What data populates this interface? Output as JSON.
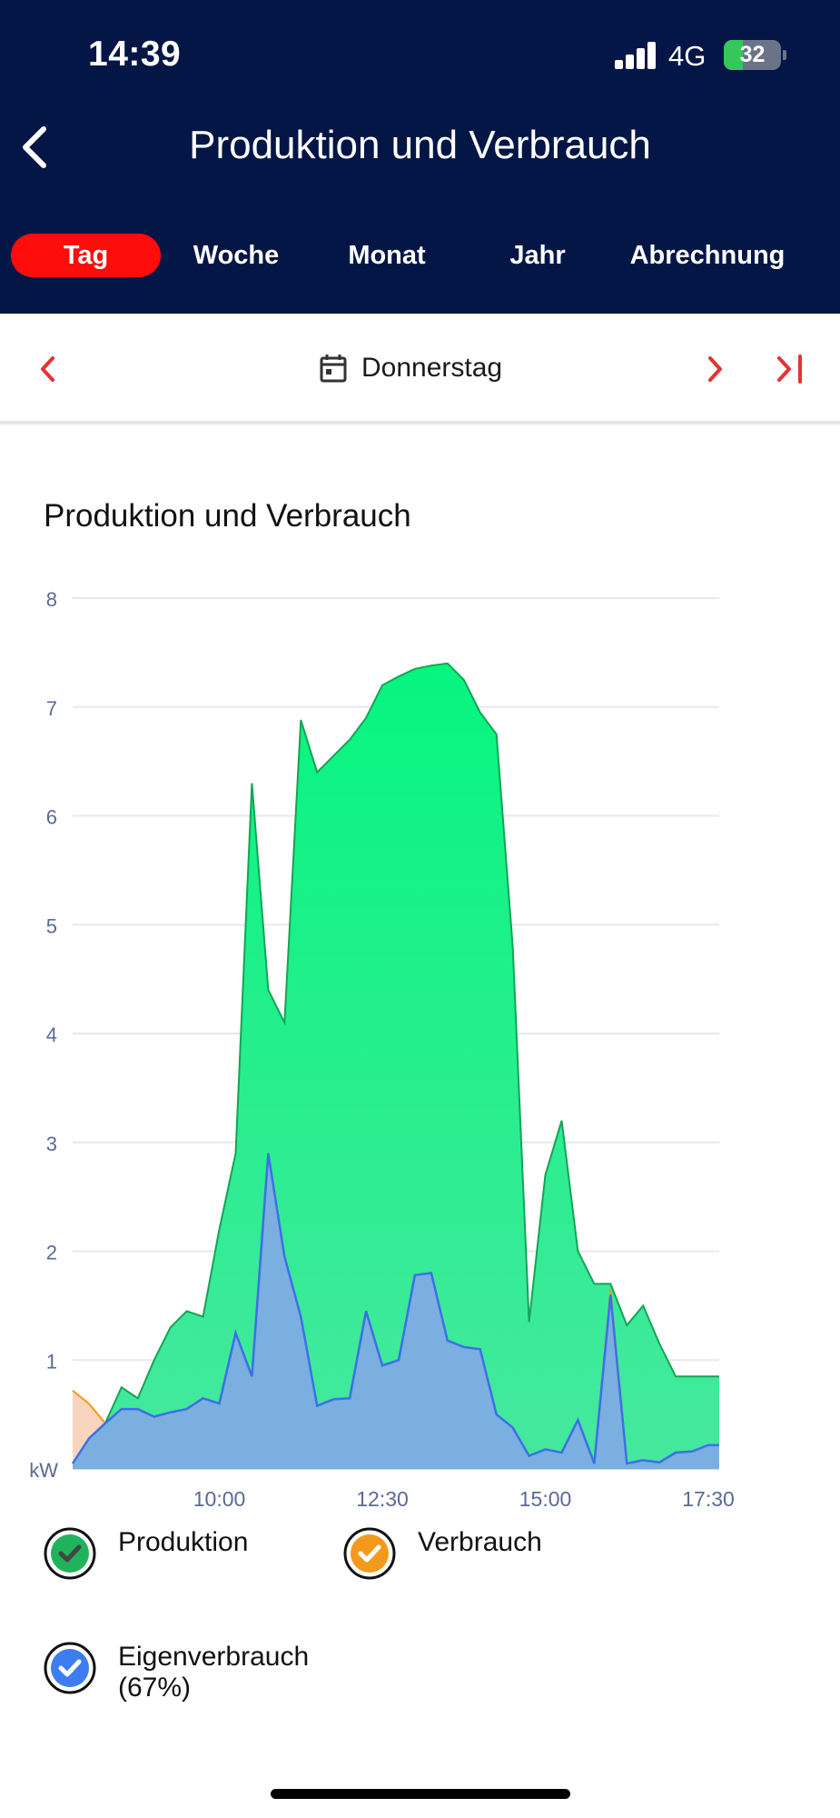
{
  "status": {
    "time": "14:39",
    "network": "4G",
    "battery": "32"
  },
  "header": {
    "title": "Produktion und Verbrauch"
  },
  "tabs": [
    {
      "label": "Tag",
      "active": true
    },
    {
      "label": "Woche",
      "active": false
    },
    {
      "label": "Monat",
      "active": false
    },
    {
      "label": "Jahr",
      "active": false
    },
    {
      "label": "Abrechnung",
      "active": false
    }
  ],
  "datebar": {
    "date": "Donnerstag"
  },
  "card": {
    "title": "Produktion und Verbrauch"
  },
  "colors": {
    "header_bg": "#031646",
    "accent_red": "#ff0c0c",
    "produktion": "#1fe67f",
    "verbrauch": "#f39a1c",
    "eigenverbrauch": "#3d7df0"
  },
  "chart_data": {
    "type": "area",
    "title": "Produktion und Verbrauch",
    "ylabel": "kW",
    "xlabel": "",
    "ylim": [
      0,
      8
    ],
    "yticks": [
      "8",
      "7",
      "6",
      "5",
      "4",
      "3",
      "2",
      "1",
      "kW"
    ],
    "xticks": [
      "10:00",
      "12:30",
      "15:00",
      "17:30"
    ],
    "x_range": [
      "07:45",
      "17:40"
    ],
    "grid": true,
    "legend_position": "bottom",
    "x": [
      "07:45",
      "08:00",
      "08:15",
      "08:30",
      "08:45",
      "09:00",
      "09:15",
      "09:30",
      "09:45",
      "10:00",
      "10:15",
      "10:30",
      "10:45",
      "11:00",
      "11:15",
      "11:30",
      "11:45",
      "12:00",
      "12:15",
      "12:30",
      "12:45",
      "13:00",
      "13:15",
      "13:30",
      "13:45",
      "14:00",
      "14:15",
      "14:30",
      "14:45",
      "15:00",
      "15:15",
      "15:30",
      "15:45",
      "16:00",
      "16:15",
      "16:30",
      "16:45",
      "17:00",
      "17:15",
      "17:30",
      "17:40"
    ],
    "series": [
      {
        "name": "Produktion",
        "values": [
          0.05,
          0.28,
          0.42,
          0.75,
          0.65,
          1.0,
          1.3,
          1.45,
          1.4,
          2.2,
          2.9,
          6.3,
          4.4,
          4.1,
          6.88,
          6.4,
          6.55,
          6.7,
          6.9,
          7.2,
          7.28,
          7.35,
          7.38,
          7.4,
          7.25,
          6.95,
          6.75,
          4.8,
          1.35,
          2.7,
          3.2,
          2.0,
          1.7,
          1.7,
          1.32,
          1.5,
          1.15,
          0.85,
          0.85,
          0.85,
          0.85
        ]
      },
      {
        "name": "Verbrauch",
        "values": [
          0.72,
          0.6,
          0.42,
          0.55,
          0.55,
          0.48,
          0.52,
          0.55,
          0.65,
          0.6,
          1.25,
          0.85,
          2.9,
          1.95,
          1.4,
          0.58,
          0.64,
          0.65,
          1.45,
          0.95,
          1.0,
          1.78,
          1.8,
          1.18,
          1.12,
          1.1,
          0.5,
          0.38,
          0.12,
          0.18,
          0.15,
          0.45,
          0.05,
          1.65,
          0.05,
          0.08,
          0.06,
          0.15,
          0.16,
          0.22,
          0.22
        ]
      },
      {
        "name": "Eigenverbrauch",
        "percent": "67%",
        "values": [
          0.05,
          0.28,
          0.42,
          0.55,
          0.55,
          0.48,
          0.52,
          0.55,
          0.65,
          0.6,
          1.25,
          0.85,
          2.9,
          1.95,
          1.4,
          0.58,
          0.64,
          0.65,
          1.45,
          0.95,
          1.0,
          1.78,
          1.8,
          1.18,
          1.12,
          1.1,
          0.5,
          0.38,
          0.12,
          0.18,
          0.15,
          0.45,
          0.05,
          1.6,
          0.05,
          0.08,
          0.06,
          0.15,
          0.16,
          0.22,
          0.22
        ]
      }
    ]
  },
  "legend": [
    {
      "label": "Produktion",
      "color": "#1fb45c"
    },
    {
      "label": "Verbrauch",
      "color": "#f39a1c"
    },
    {
      "label": "Eigenverbrauch\n(67%)",
      "color": "#3d7df0"
    }
  ]
}
